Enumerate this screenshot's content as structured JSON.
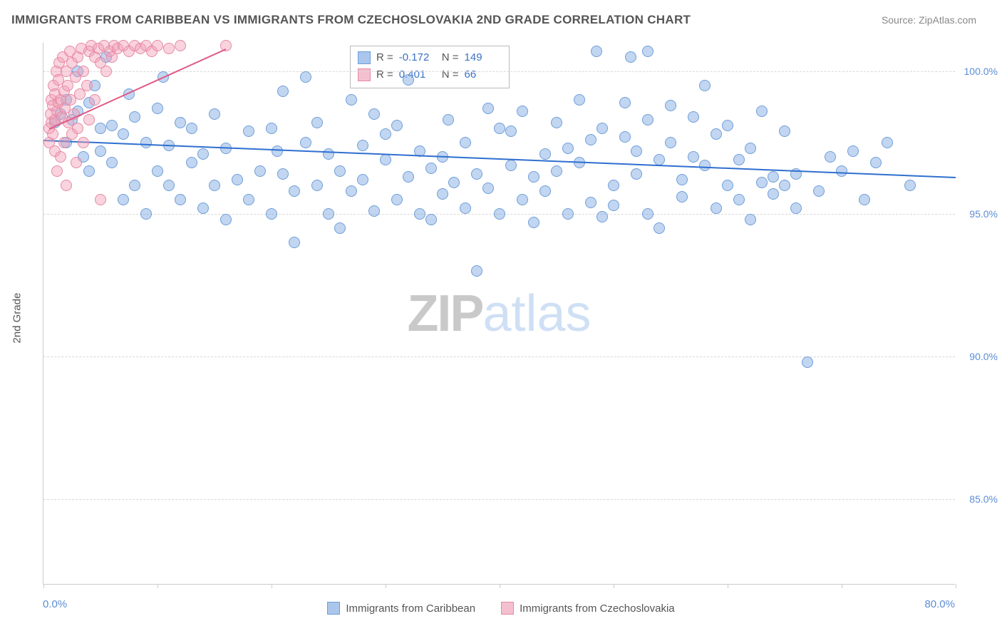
{
  "title": "IMMIGRANTS FROM CARIBBEAN VS IMMIGRANTS FROM CZECHOSLOVAKIA 2ND GRADE CORRELATION CHART",
  "source_prefix": "Source: ",
  "source_name": "ZipAtlas.com",
  "y_axis_title": "2nd Grade",
  "watermark_a": "ZIP",
  "watermark_b": "atlas",
  "chart": {
    "type": "scatter",
    "xlim": [
      0,
      80
    ],
    "ylim": [
      82,
      101
    ],
    "x_tick_step": 10,
    "y_ticks": [
      85,
      90,
      95,
      100
    ],
    "x_labels": {
      "min": "0.0%",
      "max": "80.0%"
    },
    "y_tick_labels": [
      "85.0%",
      "90.0%",
      "95.0%",
      "100.0%"
    ],
    "grid_color": "#d8d8d8",
    "background_color": "#ffffff",
    "series": [
      {
        "name": "Immigrants from Caribbean",
        "color_fill": "rgba(120,163,225,0.45)",
        "color_stroke": "#6f9ed9",
        "swatch_fill": "#aac6ec",
        "swatch_stroke": "#6f9ed9",
        "R": "-0.172",
        "N": "149",
        "trend": {
          "x1": 0,
          "y1": 97.6,
          "x2": 80,
          "y2": 96.3,
          "color": "#2f6fd0",
          "width": 2
        },
        "points": [
          [
            1,
            98.2
          ],
          [
            1.5,
            98.5
          ],
          [
            2,
            99.0
          ],
          [
            2,
            97.5
          ],
          [
            2.5,
            98.3
          ],
          [
            3,
            98.6
          ],
          [
            3,
            100.0
          ],
          [
            3.5,
            97.0
          ],
          [
            4,
            98.9
          ],
          [
            4,
            96.5
          ],
          [
            4.5,
            99.5
          ],
          [
            5,
            98.0
          ],
          [
            5,
            97.2
          ],
          [
            5.5,
            100.5
          ],
          [
            6,
            96.8
          ],
          [
            6,
            98.1
          ],
          [
            7,
            95.5
          ],
          [
            7,
            97.8
          ],
          [
            7.5,
            99.2
          ],
          [
            8,
            96.0
          ],
          [
            8,
            98.4
          ],
          [
            9,
            97.5
          ],
          [
            9,
            95.0
          ],
          [
            10,
            96.5
          ],
          [
            10,
            98.7
          ],
          [
            10.5,
            99.8
          ],
          [
            11,
            96.0
          ],
          [
            11,
            97.4
          ],
          [
            12,
            98.2
          ],
          [
            12,
            95.5
          ],
          [
            13,
            96.8
          ],
          [
            13,
            98.0
          ],
          [
            14,
            97.1
          ],
          [
            14,
            95.2
          ],
          [
            15,
            96.0
          ],
          [
            15,
            98.5
          ],
          [
            16,
            97.3
          ],
          [
            16,
            94.8
          ],
          [
            17,
            96.2
          ],
          [
            18,
            95.5
          ],
          [
            18,
            97.9
          ],
          [
            19,
            96.5
          ],
          [
            20,
            98.0
          ],
          [
            20,
            95.0
          ],
          [
            20.5,
            97.2
          ],
          [
            21,
            96.4
          ],
          [
            21,
            99.3
          ],
          [
            22,
            95.8
          ],
          [
            22,
            94.0
          ],
          [
            23,
            97.5
          ],
          [
            23,
            99.8
          ],
          [
            24,
            96.0
          ],
          [
            24,
            98.2
          ],
          [
            25,
            95.0
          ],
          [
            25,
            97.1
          ],
          [
            26,
            96.5
          ],
          [
            26,
            94.5
          ],
          [
            27,
            95.8
          ],
          [
            27,
            99.0
          ],
          [
            28,
            97.4
          ],
          [
            28,
            96.2
          ],
          [
            29,
            98.5
          ],
          [
            29,
            95.1
          ],
          [
            30,
            96.9
          ],
          [
            30,
            97.8
          ],
          [
            31,
            95.5
          ],
          [
            31,
            98.1
          ],
          [
            32,
            96.3
          ],
          [
            32,
            99.7
          ],
          [
            33,
            95.0
          ],
          [
            33,
            97.2
          ],
          [
            34,
            96.6
          ],
          [
            34,
            94.8
          ],
          [
            35,
            97.0
          ],
          [
            35,
            95.7
          ],
          [
            35.5,
            98.3
          ],
          [
            36,
            96.1
          ],
          [
            37,
            97.5
          ],
          [
            37,
            95.2
          ],
          [
            38,
            93.0
          ],
          [
            38,
            96.4
          ],
          [
            39,
            98.7
          ],
          [
            39,
            95.9
          ],
          [
            40,
            98.0
          ],
          [
            40,
            95.0
          ],
          [
            41,
            96.7
          ],
          [
            41,
            97.9
          ],
          [
            42,
            95.5
          ],
          [
            42,
            98.6
          ],
          [
            43,
            96.3
          ],
          [
            43,
            94.7
          ],
          [
            44,
            97.1
          ],
          [
            44,
            95.8
          ],
          [
            45,
            96.5
          ],
          [
            45,
            98.2
          ],
          [
            46,
            97.3
          ],
          [
            46,
            95.0
          ],
          [
            47,
            99.0
          ],
          [
            47,
            96.8
          ],
          [
            48,
            95.4
          ],
          [
            48,
            97.6
          ],
          [
            48.5,
            100.7
          ],
          [
            49,
            98.0
          ],
          [
            49,
            94.9
          ],
          [
            50,
            96.0
          ],
          [
            50,
            95.3
          ],
          [
            51,
            97.7
          ],
          [
            51,
            98.9
          ],
          [
            51.5,
            100.5
          ],
          [
            52,
            96.4
          ],
          [
            52,
            97.2
          ],
          [
            53,
            95.0
          ],
          [
            53,
            98.3
          ],
          [
            53,
            100.7
          ],
          [
            54,
            96.9
          ],
          [
            54,
            94.5
          ],
          [
            55,
            97.5
          ],
          [
            55,
            98.8
          ],
          [
            56,
            96.2
          ],
          [
            56,
            95.6
          ],
          [
            57,
            97.0
          ],
          [
            57,
            98.4
          ],
          [
            58,
            96.7
          ],
          [
            58,
            99.5
          ],
          [
            59,
            95.2
          ],
          [
            59,
            97.8
          ],
          [
            60,
            96.0
          ],
          [
            60,
            98.1
          ],
          [
            61,
            95.5
          ],
          [
            61,
            96.9
          ],
          [
            62,
            94.8
          ],
          [
            62,
            97.3
          ],
          [
            63,
            98.6
          ],
          [
            63,
            96.1
          ],
          [
            64,
            96.3
          ],
          [
            64,
            95.7
          ],
          [
            65,
            97.9
          ],
          [
            65,
            96.0
          ],
          [
            66,
            95.2
          ],
          [
            66,
            96.4
          ],
          [
            67,
            89.8
          ],
          [
            68,
            95.8
          ],
          [
            69,
            97.0
          ],
          [
            70,
            96.5
          ],
          [
            71,
            97.2
          ],
          [
            72,
            95.5
          ],
          [
            73,
            96.8
          ],
          [
            74,
            97.5
          ],
          [
            76,
            96.0
          ]
        ]
      },
      {
        "name": "Immigrants from Czechoslovakia",
        "color_fill": "rgba(241,157,182,0.45)",
        "color_stroke": "#e589a4",
        "swatch_fill": "#f4c0d0",
        "swatch_stroke": "#e589a4",
        "R": "0.401",
        "N": "66",
        "trend": {
          "x1": 0.5,
          "y1": 98.0,
          "x2": 16,
          "y2": 100.8,
          "color": "#e05a85",
          "width": 2
        },
        "points": [
          [
            0.5,
            97.5
          ],
          [
            0.5,
            98.0
          ],
          [
            0.6,
            98.5
          ],
          [
            0.7,
            98.2
          ],
          [
            0.7,
            99.0
          ],
          [
            0.8,
            97.8
          ],
          [
            0.8,
            98.8
          ],
          [
            0.9,
            99.5
          ],
          [
            1.0,
            98.3
          ],
          [
            1.0,
            97.2
          ],
          [
            1.0,
            99.2
          ],
          [
            1.1,
            100.0
          ],
          [
            1.2,
            98.6
          ],
          [
            1.2,
            96.5
          ],
          [
            1.3,
            99.7
          ],
          [
            1.3,
            98.9
          ],
          [
            1.4,
            100.3
          ],
          [
            1.5,
            97.0
          ],
          [
            1.5,
            99.0
          ],
          [
            1.6,
            98.4
          ],
          [
            1.7,
            100.5
          ],
          [
            1.8,
            99.3
          ],
          [
            1.8,
            97.5
          ],
          [
            1.9,
            98.7
          ],
          [
            2.0,
            100.0
          ],
          [
            2.0,
            96.0
          ],
          [
            2.1,
            99.5
          ],
          [
            2.2,
            98.2
          ],
          [
            2.3,
            100.7
          ],
          [
            2.4,
            99.0
          ],
          [
            2.5,
            97.8
          ],
          [
            2.5,
            100.3
          ],
          [
            2.7,
            98.5
          ],
          [
            2.8,
            99.8
          ],
          [
            2.9,
            96.8
          ],
          [
            3.0,
            100.5
          ],
          [
            3.0,
            98.0
          ],
          [
            3.2,
            99.2
          ],
          [
            3.3,
            100.8
          ],
          [
            3.5,
            97.5
          ],
          [
            3.5,
            100.0
          ],
          [
            3.8,
            99.5
          ],
          [
            4.0,
            100.7
          ],
          [
            4.0,
            98.3
          ],
          [
            4.2,
            100.9
          ],
          [
            4.5,
            99.0
          ],
          [
            4.5,
            100.5
          ],
          [
            4.8,
            100.8
          ],
          [
            5.0,
            95.5
          ],
          [
            5.0,
            100.3
          ],
          [
            5.3,
            100.9
          ],
          [
            5.5,
            100.0
          ],
          [
            5.8,
            100.7
          ],
          [
            6.0,
            100.5
          ],
          [
            6.2,
            100.9
          ],
          [
            6.5,
            100.8
          ],
          [
            7.0,
            100.9
          ],
          [
            7.5,
            100.7
          ],
          [
            8.0,
            100.9
          ],
          [
            8.5,
            100.8
          ],
          [
            9.0,
            100.9
          ],
          [
            9.5,
            100.7
          ],
          [
            10.0,
            100.9
          ],
          [
            11.0,
            100.8
          ],
          [
            12.0,
            100.9
          ],
          [
            16.0,
            100.9
          ]
        ]
      }
    ]
  },
  "legend_bottom": [
    {
      "label": "Immigrants from Caribbean"
    },
    {
      "label": "Immigrants from Czechoslovakia"
    }
  ],
  "stats_labels": {
    "r_prefix": "R =",
    "n_prefix": "N ="
  }
}
